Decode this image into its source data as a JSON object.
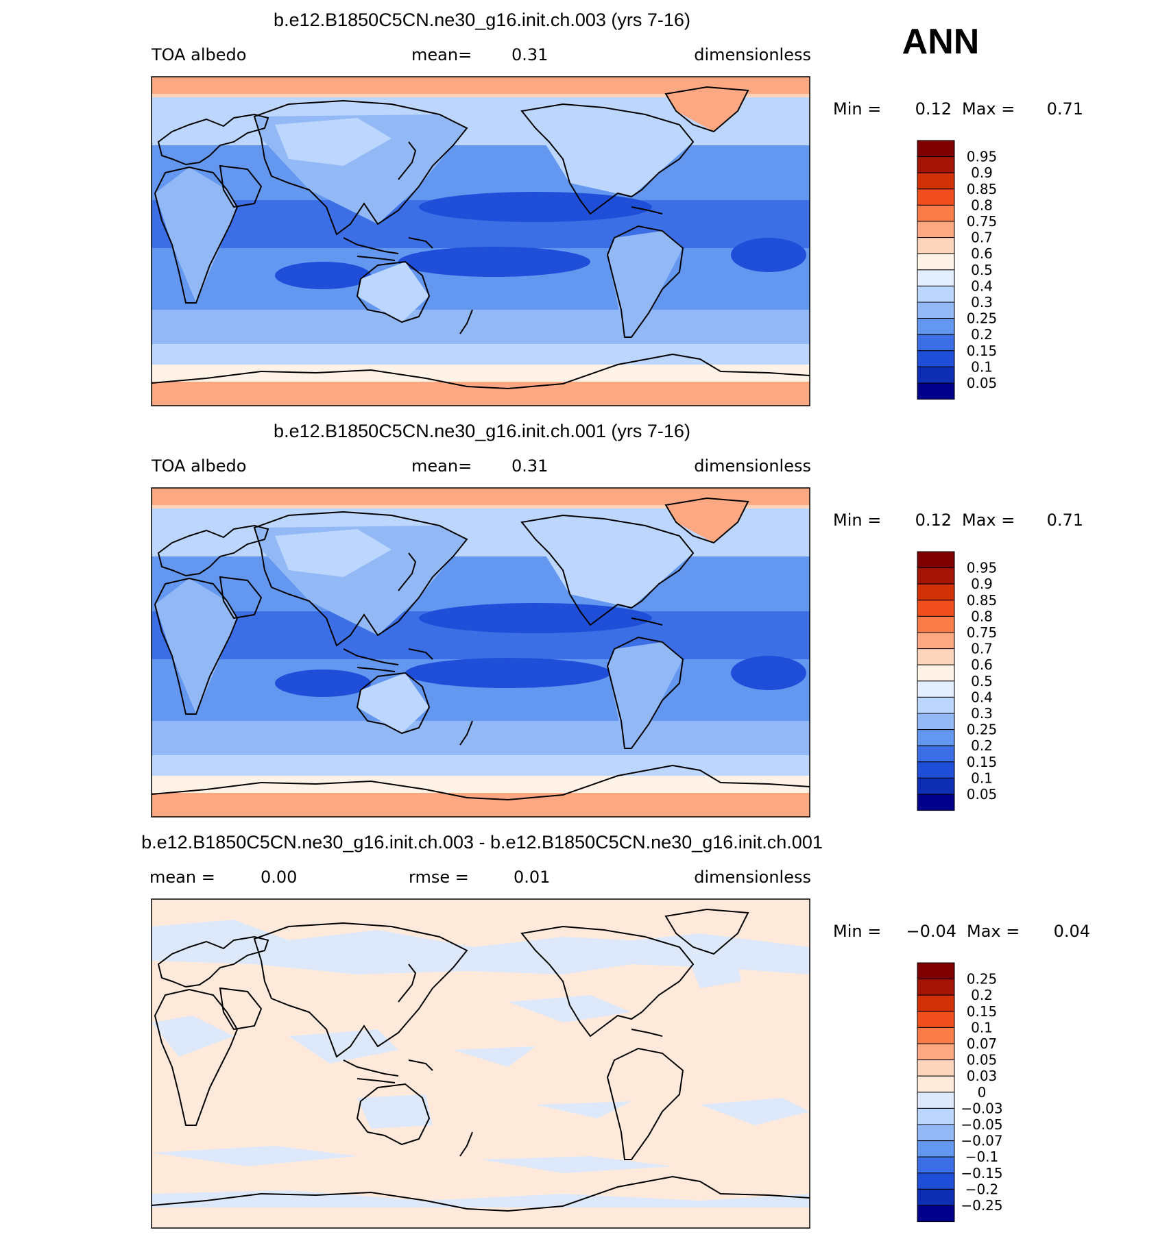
{
  "season_label": "ANN",
  "panels": [
    {
      "title": "b.e12.B1850C5CN.ne30_g16.init.ch.003 (yrs 7-16)",
      "left_label": "TOA albedo",
      "mid_label": "mean=",
      "mid_value": "0.31",
      "right_label": "dimensionless",
      "min_label": "Min =",
      "min_value": "0.12",
      "max_label": "Max =",
      "max_value": "0.71",
      "colorbar_labels": [
        "0.95",
        "0.9",
        "0.85",
        "0.8",
        "0.75",
        "0.7",
        "0.6",
        "0.5",
        "0.4",
        "0.3",
        "0.25",
        "0.2",
        "0.15",
        "0.1",
        "0.05"
      ]
    },
    {
      "title": "b.e12.B1850C5CN.ne30_g16.init.ch.001 (yrs 7-16)",
      "left_label": "TOA albedo",
      "mid_label": "mean=",
      "mid_value": "0.31",
      "right_label": "dimensionless",
      "min_label": "Min =",
      "min_value": "0.12",
      "max_label": "Max =",
      "max_value": "0.71",
      "colorbar_labels": [
        "0.95",
        "0.9",
        "0.85",
        "0.8",
        "0.75",
        "0.7",
        "0.6",
        "0.5",
        "0.4",
        "0.3",
        "0.25",
        "0.2",
        "0.15",
        "0.1",
        "0.05"
      ]
    },
    {
      "title": "b.e12.B1850C5CN.ne30_g16.init.ch.003 - b.e12.B1850C5CN.ne30_g16.init.ch.001",
      "left_label": "mean =",
      "left_value": "0.00",
      "mid_label": "rmse =",
      "mid_value": "0.01",
      "right_label": "dimensionless",
      "min_label": "Min =",
      "min_value": "−0.04",
      "max_label": "Max =",
      "max_value": "0.04",
      "colorbar_labels": [
        "0.25",
        "0.2",
        "0.15",
        "0.1",
        "0.07",
        "0.05",
        "0.03",
        "0",
        "−0.03",
        "−0.05",
        "−0.07",
        "−0.1",
        "−0.15",
        "−0.2",
        "−0.25"
      ]
    }
  ],
  "colors": {
    "absolute_scale": [
      "#7f0000",
      "#a51505",
      "#d23108",
      "#f04e1c",
      "#f97c49",
      "#fca882",
      "#fdd4bc",
      "#fff2e6",
      "#e3efff",
      "#bcd6fd",
      "#92b9f6",
      "#6397f0",
      "#3c6fe6",
      "#1f4ed9",
      "#0e2fb4",
      "#00008b"
    ],
    "difference_scale": [
      "#7f0000",
      "#a51505",
      "#d23108",
      "#f04e1c",
      "#f97c49",
      "#fca882",
      "#fdd4bc",
      "#ffe9da",
      "#dde9fb",
      "#bcd6fd",
      "#92b9f6",
      "#6397f0",
      "#3c6fe6",
      "#1f4ed9",
      "#0e2fb4",
      "#00008b"
    ]
  }
}
